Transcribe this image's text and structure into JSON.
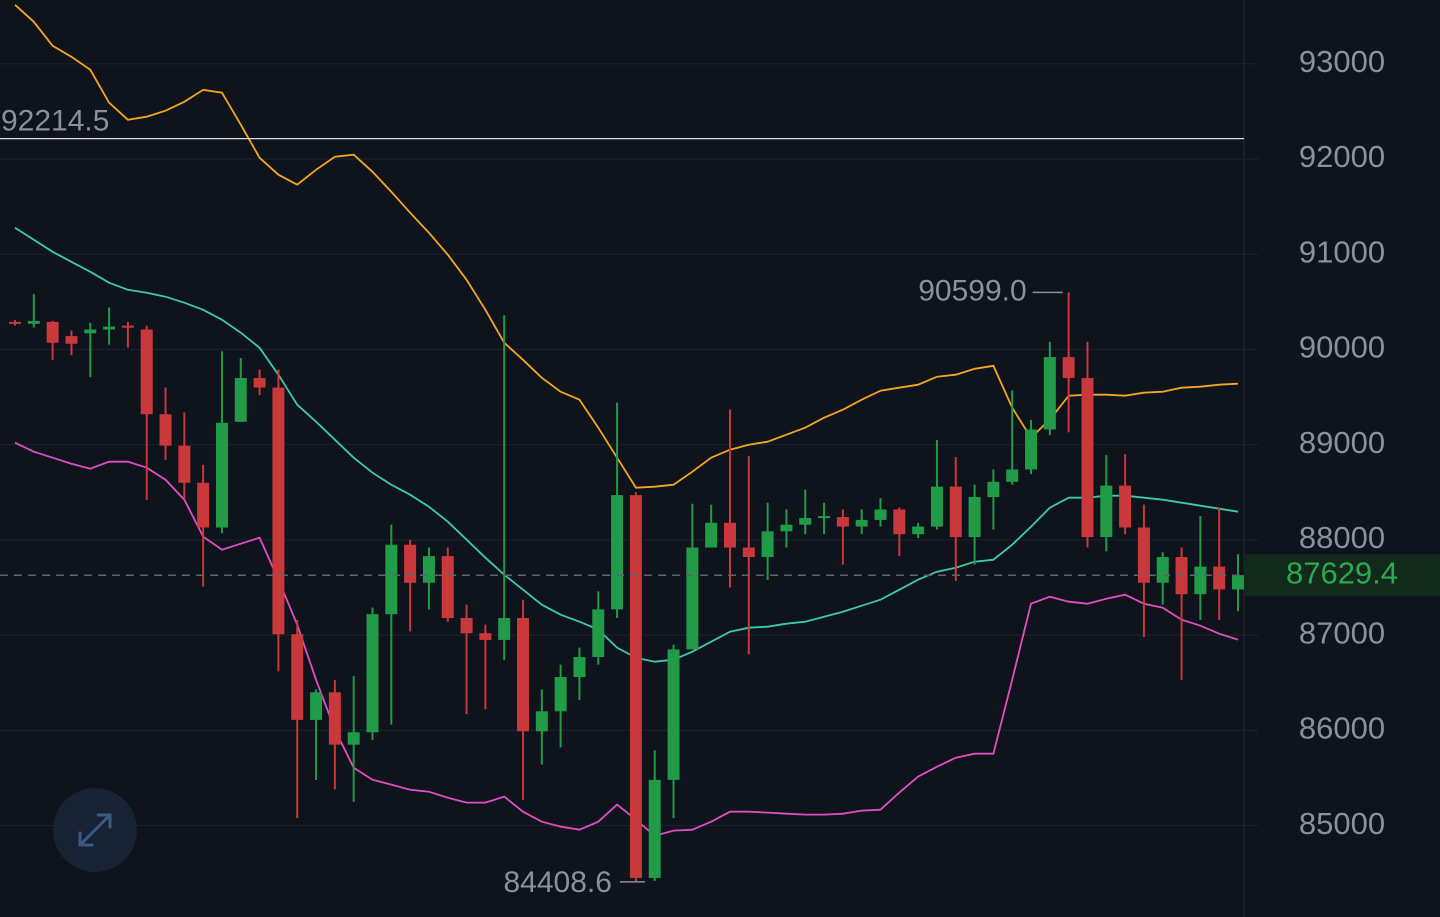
{
  "chart_data": {
    "type": "candlestick",
    "ylim": [
      84040,
      93670
    ],
    "yticks": [
      85000,
      86000,
      87000,
      88000,
      89000,
      90000,
      91000,
      92000,
      93000
    ],
    "grid": true,
    "colors": {
      "up": "#229b49",
      "down": "#c9383b",
      "last": "#2ea84f"
    },
    "open": [
      90290,
      90270,
      90290,
      90140,
      90170,
      90210,
      90250,
      90210,
      89320,
      88990,
      88600,
      88130,
      89240,
      89700,
      89600,
      87010,
      86110,
      86400,
      85850,
      85980,
      87220,
      87950,
      87550,
      87830,
      87180,
      87020,
      86950,
      87180,
      85990,
      86200,
      86560,
      86770,
      87270,
      88470,
      84450,
      85480,
      86850,
      87920,
      88180,
      87920,
      87820,
      88090,
      88160,
      88230,
      88240,
      88140,
      88210,
      88320,
      88060,
      88140,
      88560,
      88030,
      88450,
      88610,
      88740,
      89160,
      89920,
      89700,
      88030,
      88570,
      88130,
      87550,
      87820,
      87430,
      87720,
      87480
    ],
    "high": [
      90310,
      90580,
      90300,
      90200,
      90280,
      90440,
      90290,
      90250,
      89600,
      89340,
      88790,
      89980,
      89910,
      89790,
      89790,
      87160,
      86430,
      86530,
      86570,
      87290,
      88160,
      88000,
      87920,
      87920,
      87320,
      87110,
      90360,
      87370,
      86430,
      86690,
      86870,
      87460,
      89440,
      88500,
      85790,
      86900,
      88380,
      88370,
      89370,
      88880,
      88390,
      88320,
      88530,
      88390,
      88320,
      88320,
      88440,
      88340,
      88180,
      89050,
      88870,
      88580,
      88740,
      89570,
      89260,
      90080,
      90599,
      90080,
      88890,
      88900,
      88370,
      87870,
      87920,
      88250,
      88340,
      87850
    ],
    "low": [
      90250,
      90230,
      89890,
      89940,
      89710,
      90050,
      90020,
      88420,
      88840,
      88420,
      87510,
      88070,
      89240,
      89520,
      86620,
      85080,
      85480,
      85380,
      85250,
      85900,
      86060,
      87040,
      87270,
      87140,
      86170,
      86220,
      86740,
      85270,
      85640,
      85820,
      86320,
      86690,
      87180,
      84408.6,
      84420,
      85080,
      86850,
      87920,
      87500,
      86800,
      87580,
      87920,
      88060,
      88060,
      87740,
      88060,
      88140,
      87830,
      88020,
      88110,
      87570,
      87740,
      88110,
      88580,
      88690,
      89100,
      89130,
      87920,
      87880,
      88060,
      86980,
      87320,
      86530,
      87160,
      87160,
      87250
    ],
    "close": [
      90280,
      90300,
      90070,
      90060,
      90210,
      90240,
      90230,
      89320,
      88990,
      88600,
      88130,
      89230,
      89700,
      89600,
      87010,
      86110,
      86400,
      85850,
      85980,
      87220,
      87950,
      87550,
      87830,
      87180,
      87020,
      86950,
      87180,
      85990,
      86200,
      86560,
      86770,
      87270,
      88470,
      84450,
      85480,
      86850,
      87920,
      88180,
      87920,
      87820,
      88090,
      88160,
      88230,
      88250,
      88140,
      88210,
      88320,
      88060,
      88140,
      88560,
      88030,
      88450,
      88610,
      88740,
      89160,
      89920,
      89700,
      88030,
      88570,
      88130,
      87550,
      87820,
      87430,
      87720,
      87480,
      87629.4
    ],
    "bands": [
      {
        "color": "#f5a623",
        "values": [
          93620,
          93441,
          93189,
          93073,
          92937,
          92591,
          92412,
          92444,
          92507,
          92601,
          92727,
          92696,
          92360,
          92013,
          91835,
          91730,
          91887,
          92024,
          92045,
          91866,
          91656,
          91436,
          91226,
          90995,
          90732,
          90417,
          90071,
          89892,
          89703,
          89556,
          89472,
          89178,
          88863,
          88548,
          88559,
          88580,
          88716,
          88863,
          88947,
          89000,
          89031,
          89105,
          89178,
          89283,
          89367,
          89472,
          89567,
          89598,
          89630,
          89714,
          89735,
          89797,
          89829,
          89388,
          89073,
          89262,
          89514,
          89525,
          89525,
          89514,
          89546,
          89556,
          89598,
          89609,
          89630,
          89640
        ]
      },
      {
        "color": "#3ec9b0",
        "values": [
          91278,
          91152,
          91026,
          90921,
          90816,
          90701,
          90627,
          90596,
          90554,
          90491,
          90417,
          90312,
          90176,
          90018,
          89735,
          89420,
          89241,
          89052,
          88863,
          88706,
          88580,
          88475,
          88349,
          88191,
          88002,
          87813,
          87635,
          87477,
          87320,
          87215,
          87141,
          87057,
          86868,
          86763,
          86721,
          86742,
          86826,
          86931,
          87036,
          87078,
          87089,
          87120,
          87141,
          87194,
          87246,
          87309,
          87372,
          87477,
          87582,
          87666,
          87708,
          87771,
          87792,
          87950,
          88139,
          88338,
          88443,
          88443,
          88464,
          88464,
          88443,
          88422,
          88391,
          88359,
          88328,
          88296
        ]
      },
      {
        "color": "#e24fc4",
        "values": [
          89021,
          88926,
          88863,
          88800,
          88748,
          88821,
          88821,
          88758,
          88632,
          88422,
          88034,
          87897,
          87960,
          88023,
          87582,
          87110,
          86532,
          86007,
          85608,
          85482,
          85430,
          85377,
          85356,
          85293,
          85241,
          85241,
          85304,
          85146,
          85041,
          84989,
          84957,
          85041,
          85220,
          85062,
          84894,
          84947,
          84957,
          85041,
          85146,
          85146,
          85136,
          85125,
          85115,
          85115,
          85125,
          85157,
          85167,
          85346,
          85514,
          85618,
          85713,
          85755,
          85755,
          86532,
          87330,
          87404,
          87351,
          87330,
          87383,
          87425,
          87330,
          87288,
          87162,
          87099,
          87015,
          86952
        ]
      }
    ],
    "price_line": 92214.5,
    "annotations": {
      "high": "90599.0",
      "low": "84408.6"
    }
  }
}
